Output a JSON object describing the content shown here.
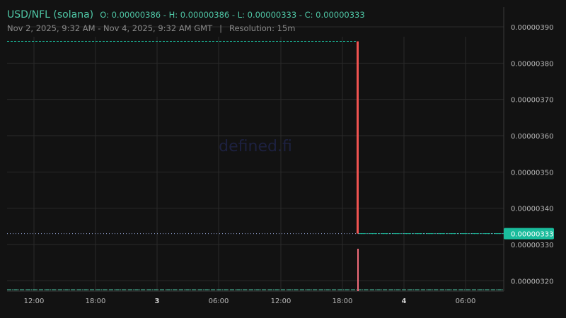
{
  "header": {
    "symbol": "USD/NFL (solana)",
    "ohlc": "O: 0.00000386 - H: 0.00000386 - L: 0.00000333 - C: 0.00000333",
    "range": "Nov 2, 2025, 9:32 AM - Nov 4, 2025, 9:32 AM GMT",
    "separator": "|",
    "resolution": "Resolution: 15m"
  },
  "watermark": "defined.fi",
  "colors": {
    "background": "#121212",
    "up": "#4fc7a6",
    "down": "#ef5350",
    "volume": "#f06c7a",
    "last_price": "#1abc9c"
  },
  "chart_data": {
    "type": "candlestick",
    "y_ticks": [
      "0.00000390",
      "0.00000380",
      "0.00000370",
      "0.00000360",
      "0.00000350",
      "0.00000340",
      "0.00000330",
      "0.00000320"
    ],
    "y_tick_values": [
      3.9,
      3.8,
      3.7,
      3.6,
      3.5,
      3.4,
      3.3,
      3.2
    ],
    "x_ticks": [
      {
        "label": "12:00",
        "bold": false
      },
      {
        "label": "18:00",
        "bold": false
      },
      {
        "label": "3",
        "bold": true
      },
      {
        "label": "06:00",
        "bold": false
      },
      {
        "label": "12:00",
        "bold": false
      },
      {
        "label": "18:00",
        "bold": false
      },
      {
        "label": "4",
        "bold": true
      },
      {
        "label": "06:00",
        "bold": false
      }
    ],
    "candle": {
      "time": "Nov 3, ~19:30",
      "open": 3.86,
      "high": 3.86,
      "low": 3.33,
      "close": 3.33,
      "unit": "e-6"
    },
    "last_price": "0.00000333",
    "previous_price_line": 3.86,
    "grid": true,
    "price_axis": "right"
  }
}
